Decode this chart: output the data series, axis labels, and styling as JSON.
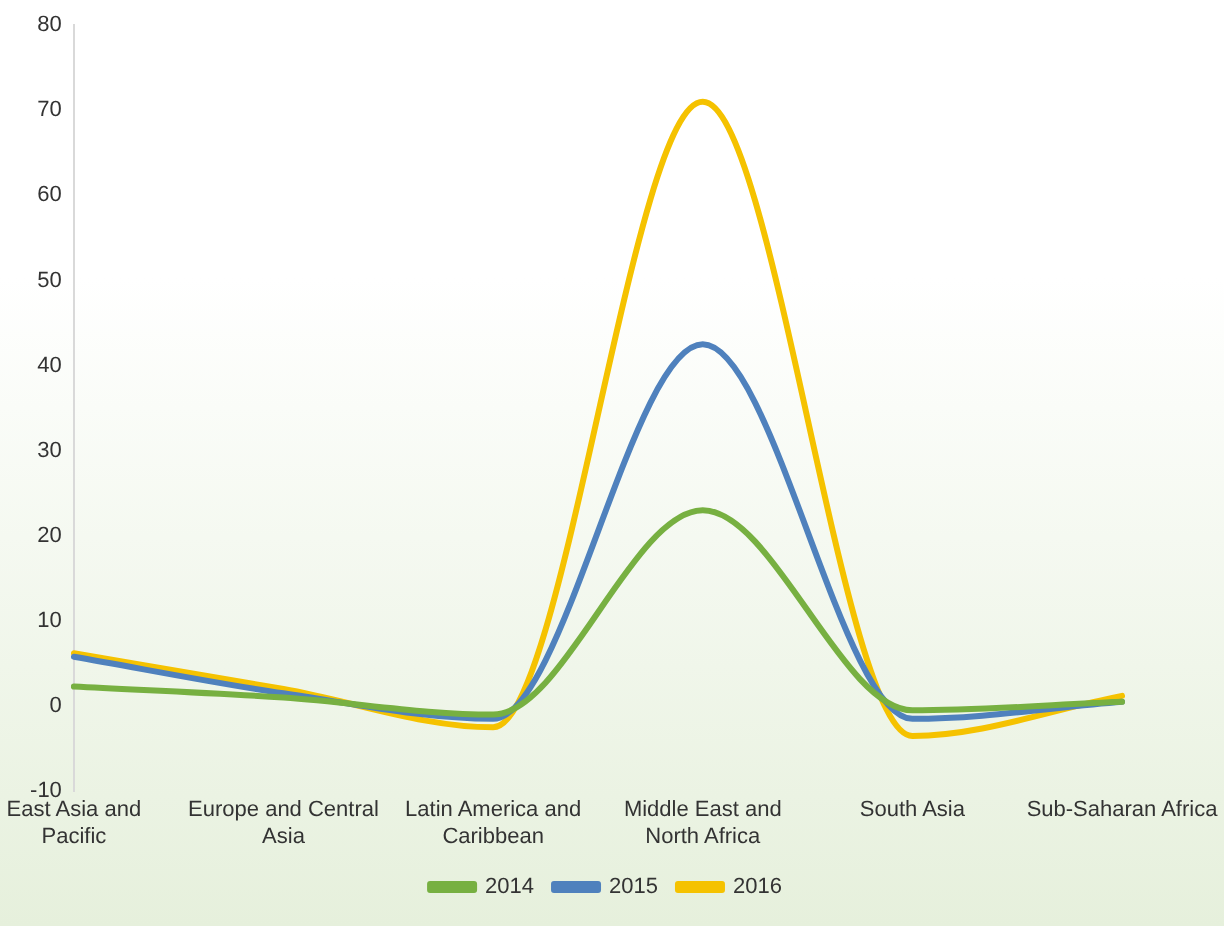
{
  "chart_data": {
    "type": "line",
    "categories": [
      "East Asia and Pacific",
      "Europe and Central Asia",
      "Latin America and Caribbean",
      "Middle East and North Africa",
      "South Asia",
      "Sub-Saharan Africa"
    ],
    "series": [
      {
        "name": "2014",
        "color": "#77b041",
        "values": [
          2.3,
          1,
          -1,
          23,
          -0.5,
          0.5
        ]
      },
      {
        "name": "2015",
        "color": "#4f81bd",
        "values": [
          5.8,
          1.5,
          -1.5,
          42.5,
          -1.5,
          0.5
        ]
      },
      {
        "name": "2016",
        "color": "#f5c200",
        "values": [
          6.2,
          2,
          -2.5,
          71,
          -3.5,
          1.2
        ]
      }
    ],
    "ylim": [
      -10,
      80
    ],
    "yticks": [
      -10,
      0,
      10,
      20,
      30,
      40,
      50,
      60,
      70,
      80
    ],
    "grid": false,
    "legend": "bottom",
    "marker": "none",
    "line_style": "solid"
  }
}
